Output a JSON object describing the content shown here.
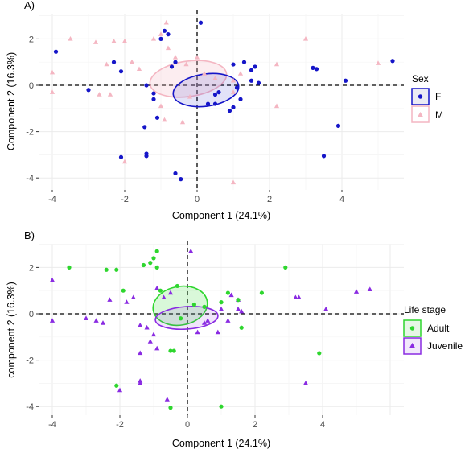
{
  "chart_data": [
    {
      "type": "scatter",
      "panel_label": "A)",
      "xlabel": "Component 1 (24.1%)",
      "ylabel": "Component 2 (16.3%)",
      "xlim": [
        -4.3,
        5.6
      ],
      "ylim": [
        -4.4,
        2.9
      ],
      "x_ticks": [
        -4,
        -2,
        0,
        2,
        4
      ],
      "y_ticks": [
        -4,
        -2,
        0,
        2
      ],
      "grid": true,
      "reference_lines": {
        "x": 0,
        "y": 0,
        "style": "dashed"
      },
      "legend": {
        "title": "Sex",
        "position": "right"
      },
      "series": [
        {
          "name": "F",
          "marker": "circle",
          "color": "#1515c8",
          "points": [
            [
              -3.9,
              1.45
            ],
            [
              -3.0,
              -0.2
            ],
            [
              -2.3,
              1.0
            ],
            [
              -2.1,
              0.6
            ],
            [
              -2.1,
              -3.1
            ],
            [
              -1.45,
              -1.8
            ],
            [
              -1.4,
              -2.95
            ],
            [
              -1.4,
              -3.05
            ],
            [
              -1.4,
              0.0
            ],
            [
              -1.2,
              -0.6
            ],
            [
              -1.2,
              -0.35
            ],
            [
              -1.1,
              -1.4
            ],
            [
              -1.0,
              2.0
            ],
            [
              -0.9,
              2.35
            ],
            [
              -0.8,
              2.2
            ],
            [
              -0.7,
              0.8
            ],
            [
              -0.6,
              1.0
            ],
            [
              -0.6,
              -3.8
            ],
            [
              -0.45,
              -4.05
            ],
            [
              0.1,
              2.7
            ],
            [
              0.3,
              -0.8
            ],
            [
              0.5,
              -0.4
            ],
            [
              0.6,
              -0.3
            ],
            [
              0.5,
              -0.8
            ],
            [
              0.9,
              -1.1
            ],
            [
              1.0,
              0.9
            ],
            [
              1.1,
              -0.1
            ],
            [
              1.3,
              1.0
            ],
            [
              1.2,
              -0.6
            ],
            [
              1.0,
              -0.95
            ],
            [
              1.5,
              0.2
            ],
            [
              1.7,
              0.1
            ],
            [
              1.6,
              0.8
            ],
            [
              3.2,
              0.75
            ],
            [
              3.3,
              0.7
            ],
            [
              3.5,
              -3.05
            ],
            [
              3.9,
              -1.75
            ],
            [
              4.1,
              0.2
            ],
            [
              5.4,
              1.05
            ],
            [
              1.5,
              0.65
            ]
          ]
        },
        {
          "name": "M",
          "marker": "triangle",
          "color": "#f4b6c2",
          "points": [
            [
              -4.0,
              -0.3
            ],
            [
              -4.0,
              0.55
            ],
            [
              -3.5,
              2.0
            ],
            [
              -2.8,
              1.85
            ],
            [
              -2.7,
              -0.4
            ],
            [
              -2.5,
              0.9
            ],
            [
              -2.4,
              -0.4
            ],
            [
              -2.3,
              1.9
            ],
            [
              -2.0,
              1.9
            ],
            [
              -2.0,
              -3.3
            ],
            [
              -1.8,
              1.0
            ],
            [
              -1.6,
              0.7
            ],
            [
              -1.2,
              2.0
            ],
            [
              -1.0,
              2.2
            ],
            [
              -1.0,
              -0.9
            ],
            [
              -0.9,
              -1.5
            ],
            [
              -0.85,
              2.7
            ],
            [
              -0.8,
              1.6
            ],
            [
              -0.6,
              1.2
            ],
            [
              -0.4,
              -1.6
            ],
            [
              -0.3,
              0.9
            ],
            [
              -0.2,
              -0.5
            ],
            [
              0.0,
              1.2
            ],
            [
              0.2,
              0.5
            ],
            [
              0.5,
              0.3
            ],
            [
              1.0,
              -4.2
            ],
            [
              1.0,
              -0.3
            ],
            [
              1.0,
              0.2
            ],
            [
              1.2,
              0.5
            ],
            [
              2.2,
              0.9
            ],
            [
              2.2,
              -0.9
            ],
            [
              3.0,
              2.0
            ],
            [
              5.0,
              0.95
            ]
          ]
        }
      ]
    },
    {
      "type": "scatter",
      "panel_label": "B)",
      "xlabel": "Component 1 (24.1%)",
      "ylabel": "component 2 (16.3%)",
      "xlim": [
        -4.3,
        5.6
      ],
      "ylim": [
        -4.4,
        2.9
      ],
      "x_ticks": [
        -4,
        -2,
        0,
        2,
        4
      ],
      "y_ticks": [
        -4,
        -2,
        0,
        2
      ],
      "grid": true,
      "reference_lines": {
        "x": 0,
        "y": 0,
        "style": "dashed"
      },
      "legend": {
        "title": "Life stage",
        "position": "right"
      },
      "series": [
        {
          "name": "Adult",
          "marker": "circle",
          "color": "#2ed62e",
          "points": [
            [
              -3.5,
              2.0
            ],
            [
              -2.4,
              1.9
            ],
            [
              -2.1,
              1.9
            ],
            [
              -2.1,
              -3.1
            ],
            [
              -1.9,
              1.0
            ],
            [
              -1.3,
              2.1
            ],
            [
              -1.1,
              2.2
            ],
            [
              -1.0,
              2.4
            ],
            [
              -0.9,
              2.0
            ],
            [
              -0.9,
              2.7
            ],
            [
              -0.8,
              1.0
            ],
            [
              -0.5,
              -1.6
            ],
            [
              -0.4,
              -1.6
            ],
            [
              -0.5,
              -4.05
            ],
            [
              -0.3,
              1.2
            ],
            [
              -0.2,
              -0.2
            ],
            [
              0.2,
              0.4
            ],
            [
              0.5,
              0.3
            ],
            [
              1.0,
              -4.0
            ],
            [
              1.0,
              0.5
            ],
            [
              1.2,
              0.9
            ],
            [
              1.5,
              0.6
            ],
            [
              1.6,
              -0.6
            ],
            [
              2.2,
              0.9
            ],
            [
              2.9,
              2.0
            ],
            [
              3.9,
              -1.7
            ]
          ]
        },
        {
          "name": "Juvenile",
          "marker": "triangle",
          "color": "#8a2be2",
          "points": [
            [
              -4.0,
              1.45
            ],
            [
              -4.0,
              -0.3
            ],
            [
              -3.0,
              -0.2
            ],
            [
              -2.7,
              -0.3
            ],
            [
              -2.5,
              -0.4
            ],
            [
              -2.3,
              0.6
            ],
            [
              -2.0,
              -3.3
            ],
            [
              -1.8,
              0.5
            ],
            [
              -1.6,
              0.7
            ],
            [
              -1.4,
              -0.5
            ],
            [
              -1.4,
              -1.7
            ],
            [
              -1.4,
              -2.9
            ],
            [
              -1.4,
              -3.0
            ],
            [
              -1.2,
              -0.6
            ],
            [
              -1.1,
              -1.2
            ],
            [
              -1.0,
              -0.9
            ],
            [
              -0.9,
              -1.5
            ],
            [
              -0.9,
              1.1
            ],
            [
              -0.7,
              0.7
            ],
            [
              -0.6,
              -3.7
            ],
            [
              -0.5,
              0.9
            ],
            [
              0.1,
              2.7
            ],
            [
              0.3,
              -0.8
            ],
            [
              0.5,
              -0.4
            ],
            [
              0.6,
              -0.3
            ],
            [
              0.9,
              -0.8
            ],
            [
              1.0,
              0.2
            ],
            [
              1.3,
              0.8
            ],
            [
              1.2,
              -0.3
            ],
            [
              1.5,
              0.2
            ],
            [
              1.5,
              0.6
            ],
            [
              1.6,
              0.1
            ],
            [
              3.2,
              0.7
            ],
            [
              3.3,
              0.7
            ],
            [
              3.5,
              -3.0
            ],
            [
              4.1,
              0.2
            ],
            [
              5.0,
              0.95
            ],
            [
              5.4,
              1.05
            ]
          ]
        }
      ]
    }
  ]
}
